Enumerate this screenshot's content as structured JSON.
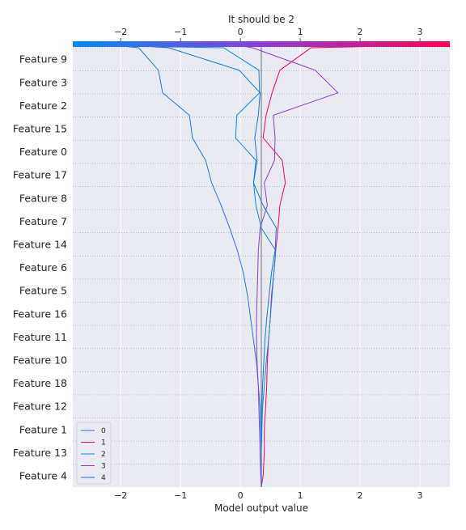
{
  "chart_data": {
    "type": "line",
    "title": "It should be 2",
    "xlabel": "Model output value",
    "ylabel": "",
    "xlim": [
      -2.8,
      3.5
    ],
    "x_ticks": [
      -2,
      -1,
      0,
      1,
      2,
      3
    ],
    "x_tick_labels": [
      "−2",
      "−1",
      "0",
      "1",
      "2",
      "3"
    ],
    "base_value": 0.35,
    "features": [
      "Feature 9",
      "Feature 3",
      "Feature 2",
      "Feature 15",
      "Feature 0",
      "Feature 17",
      "Feature 8",
      "Feature 7",
      "Feature 14",
      "Feature 6",
      "Feature 5",
      "Feature 16",
      "Feature 11",
      "Feature 10",
      "Feature 18",
      "Feature 12",
      "Feature 1",
      "Feature 13",
      "Feature 4"
    ],
    "colorbar": {
      "from": "#008bfb",
      "to": "#ff0052"
    },
    "grid": true,
    "legend_position": "bottom-left",
    "series": [
      {
        "name": "0",
        "color": "#1f77e6",
        "values": [
          0.35,
          0.35,
          0.35,
          0.34,
          0.33,
          0.3,
          0.27,
          0.22,
          0.17,
          0.12,
          0.05,
          -0.05,
          -0.18,
          -0.32,
          -0.48,
          -0.58,
          -0.8,
          -0.85,
          -1.3,
          -1.37,
          -1.7,
          -2.1
        ]
      },
      {
        "name": "1",
        "color": "#ff0052",
        "values": [
          0.35,
          0.38,
          0.4,
          0.4,
          0.42,
          0.44,
          0.45,
          0.47,
          0.5,
          0.52,
          0.56,
          0.59,
          0.63,
          0.66,
          0.75,
          0.7,
          0.38,
          0.43,
          0.53,
          0.66,
          1.18,
          3.0
        ]
      },
      {
        "name": "2",
        "color": "#008bfb",
        "values": [
          0.35,
          0.35,
          0.35,
          0.36,
          0.37,
          0.4,
          0.43,
          0.47,
          0.5,
          0.53,
          0.56,
          0.59,
          0.35,
          0.26,
          0.22,
          0.26,
          -0.08,
          -0.06,
          0.32,
          0.31,
          -0.28,
          -2.65
        ]
      },
      {
        "name": "3",
        "color": "#8a3ed6",
        "values": [
          0.35,
          0.34,
          0.33,
          0.32,
          0.31,
          0.3,
          0.28,
          0.27,
          0.27,
          0.28,
          0.29,
          0.3,
          0.33,
          0.45,
          0.4,
          0.57,
          0.58,
          0.55,
          1.63,
          1.25,
          0.2,
          -0.03
        ]
      },
      {
        "name": "4",
        "color": "#0a77e6",
        "values": [
          0.35,
          0.35,
          0.35,
          0.35,
          0.36,
          0.37,
          0.39,
          0.41,
          0.44,
          0.48,
          0.52,
          0.58,
          0.6,
          0.38,
          0.22,
          0.28,
          0.24,
          0.3,
          0.33,
          -0.02,
          -1.2,
          -1.82
        ]
      }
    ]
  }
}
